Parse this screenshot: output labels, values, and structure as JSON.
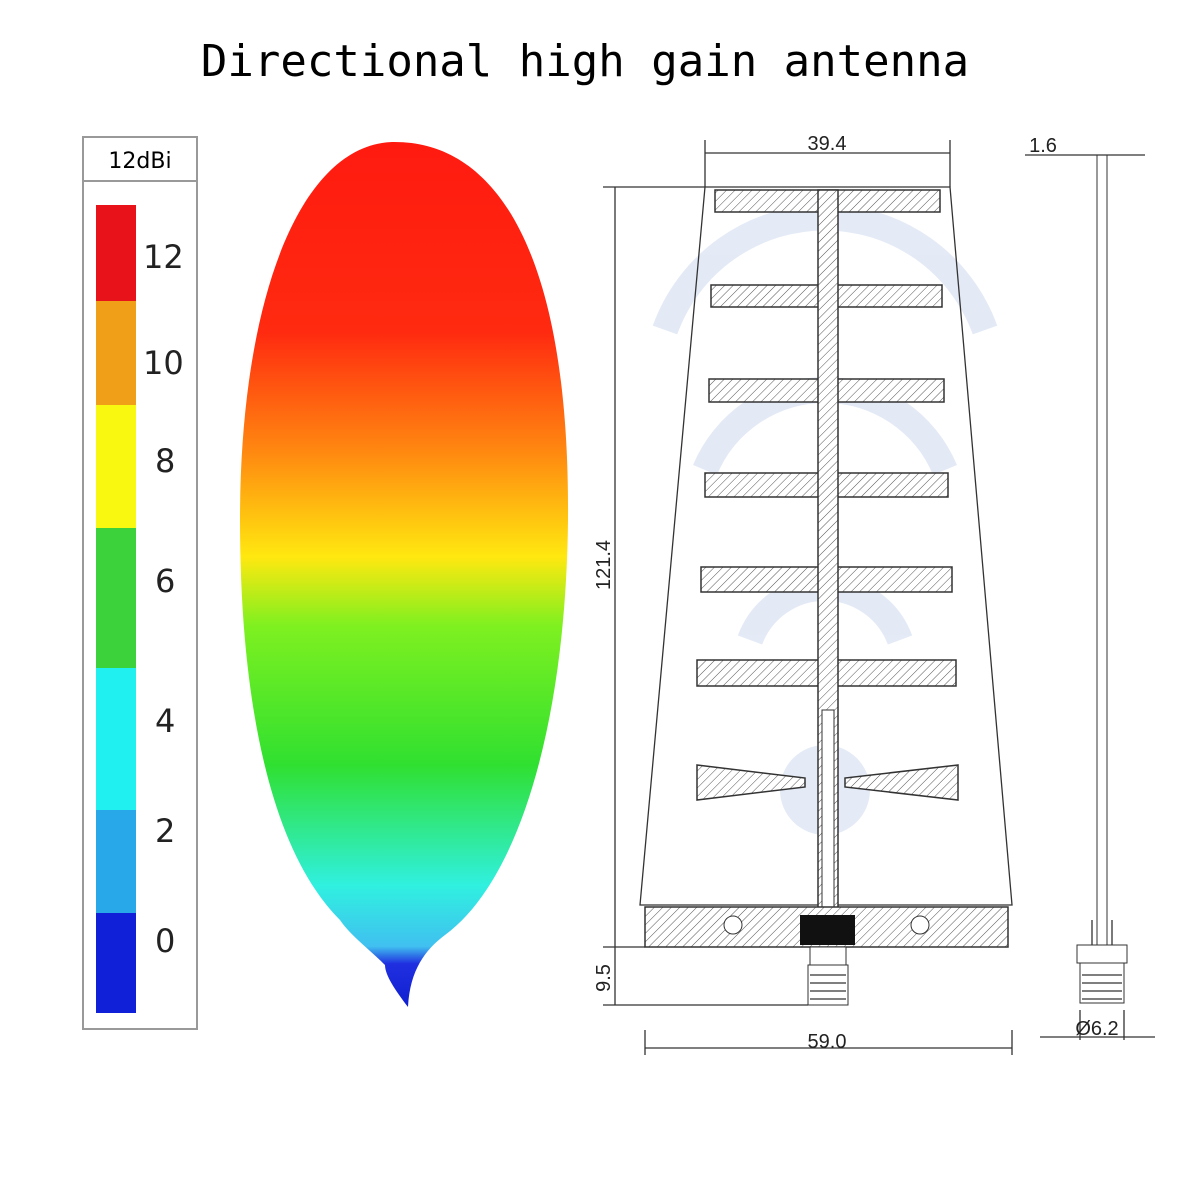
{
  "title": "Directional high gain antenna",
  "legend": {
    "header": "12dBi",
    "labels": [
      "12",
      "10",
      "8",
      "6",
      "4",
      "2",
      "0"
    ]
  },
  "dimensions": {
    "top_width": "39.4",
    "height": "121.4",
    "connector_height": "9.5",
    "base_width": "59.0",
    "thickness": "1.6",
    "connector_diameter": "Ø6.2"
  }
}
